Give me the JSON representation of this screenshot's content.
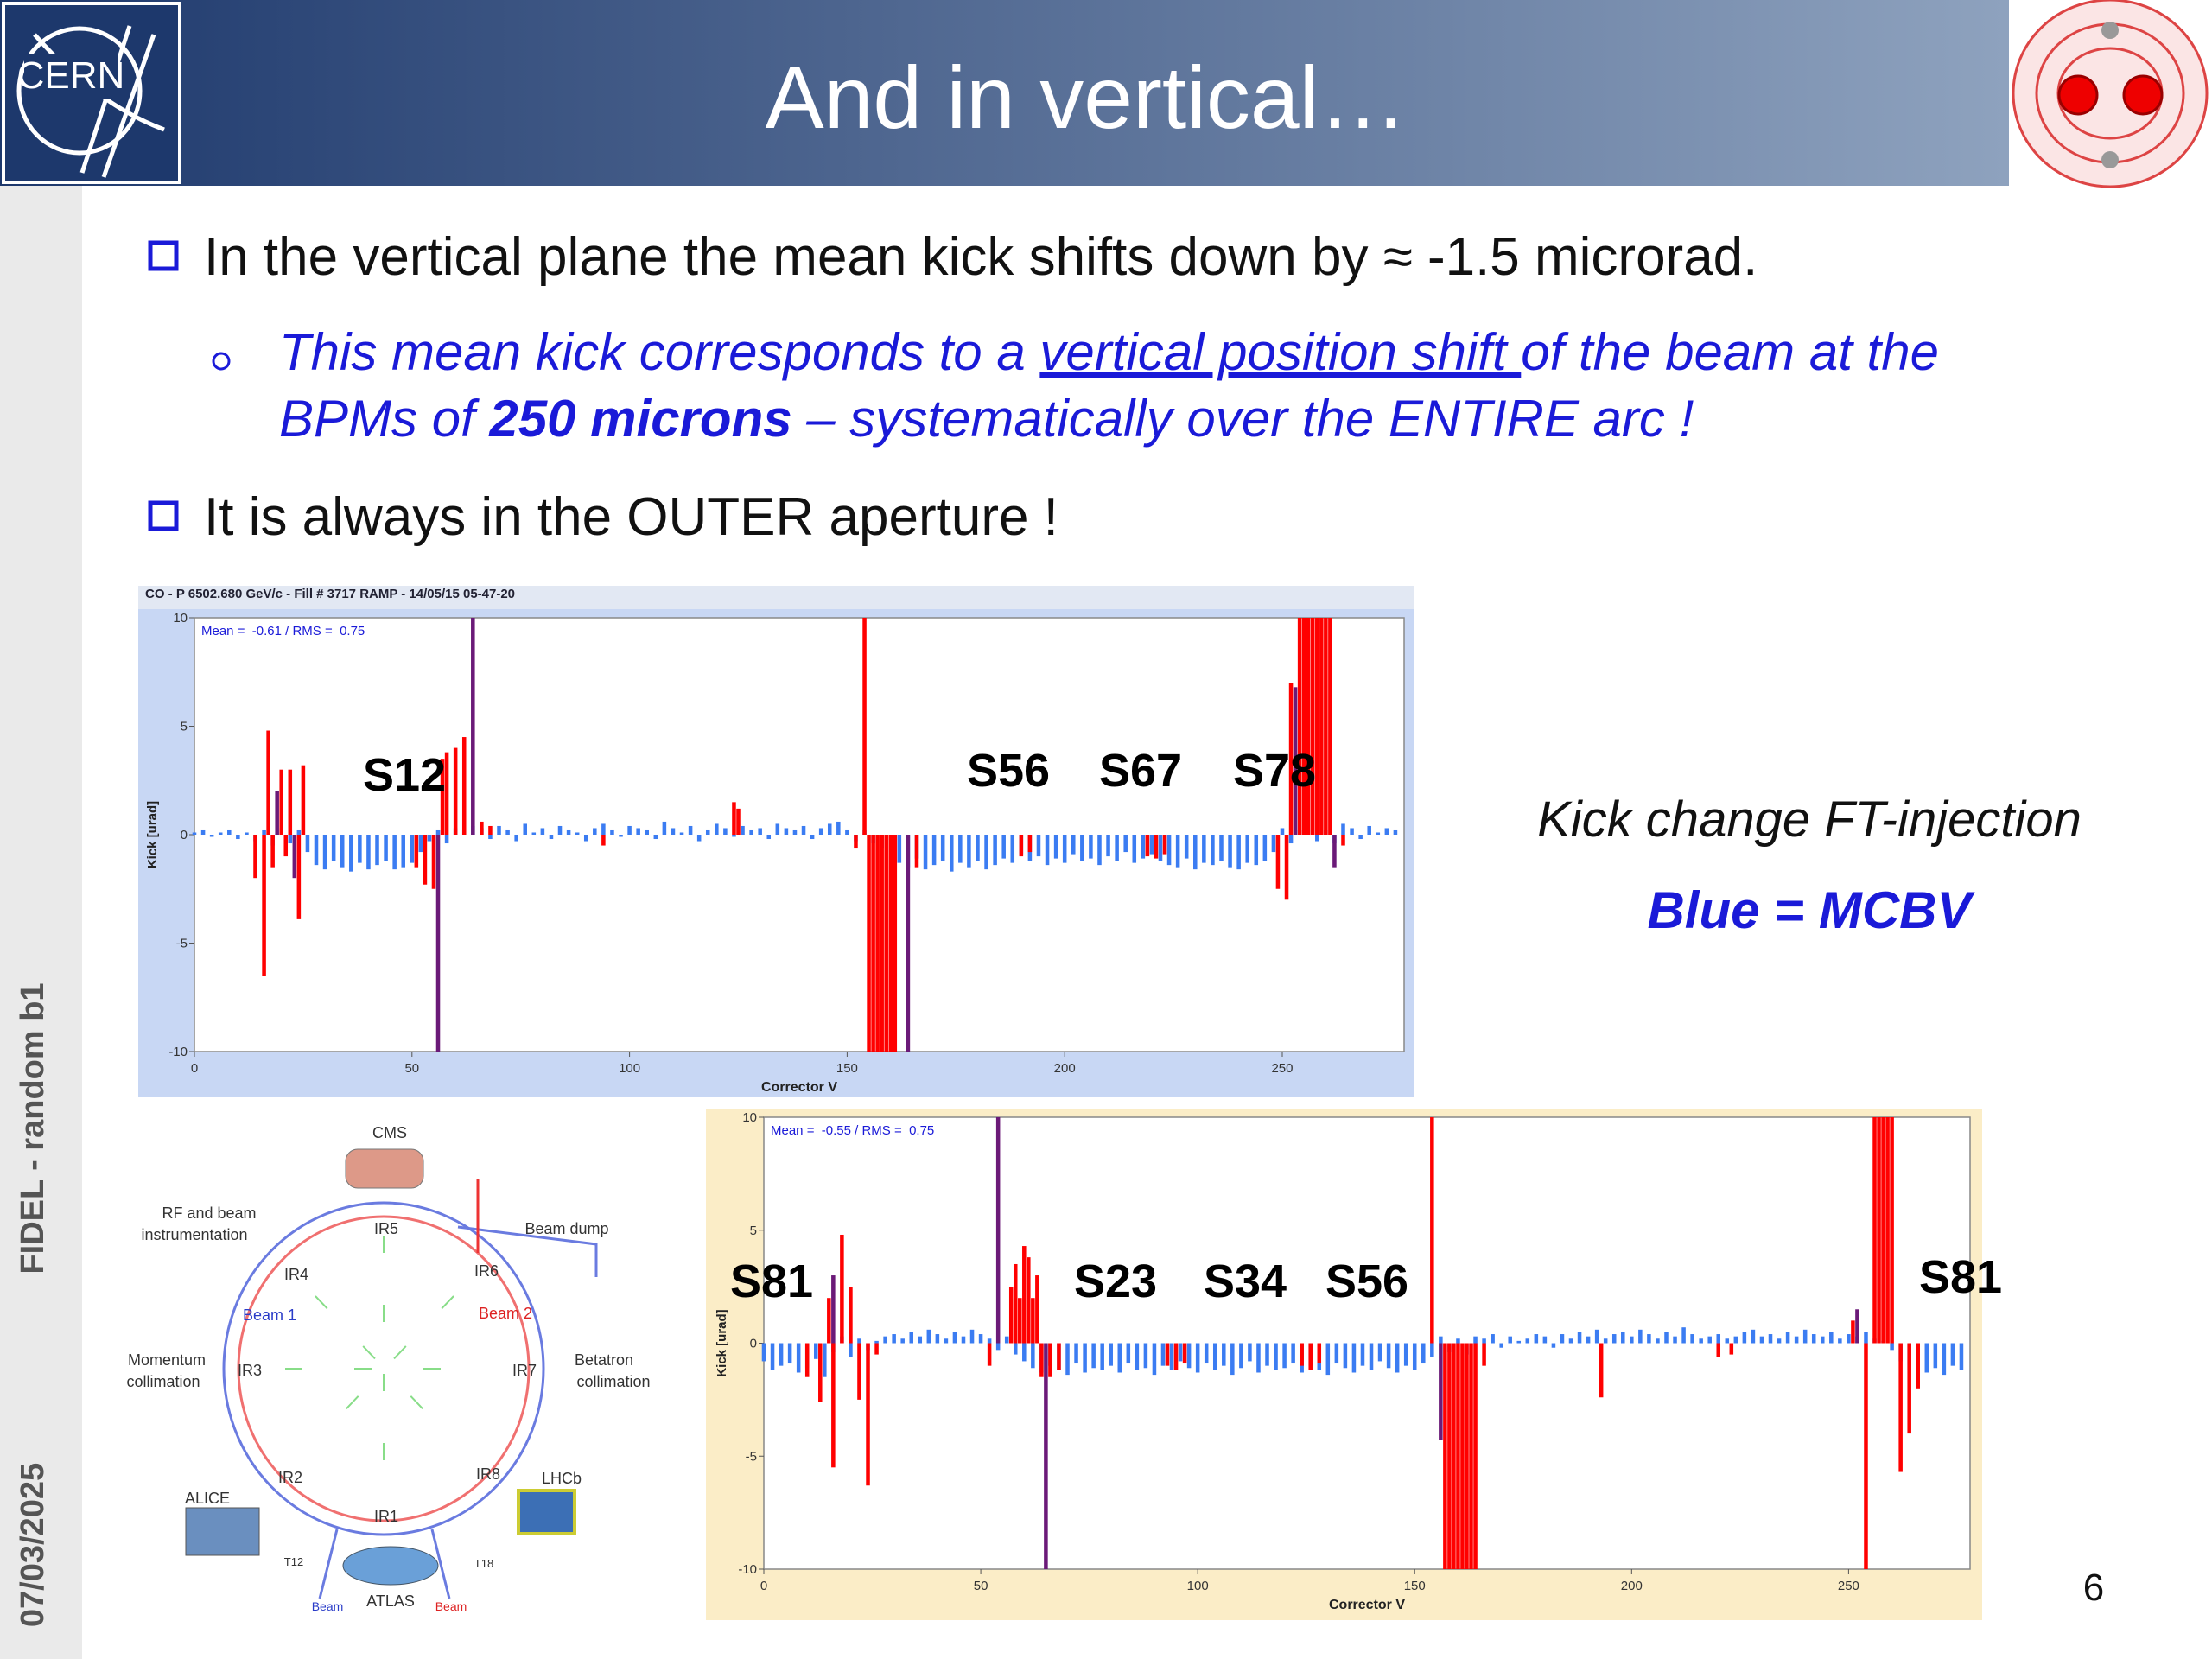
{
  "header": {
    "title": "And in vertical…"
  },
  "side": {
    "label": "FIDEL - random b1",
    "date": "07/03/2025"
  },
  "bullets": {
    "first": "In the vertical plane the mean kick shifts down by ≈ -1.5 microrad.",
    "sub": [
      "This mean kick corresponds to a ",
      "vertical position shift ",
      "of the beam at the",
      "BPMs of ",
      "250 microns",
      " – systematically over the ENTIRE arc !"
    ],
    "second": "It is always in the OUTER aperture !"
  },
  "note": {
    "caption": "Kick change FT-injection",
    "legend": "Blue = MCBV"
  },
  "page_number": "6",
  "diagram": {
    "labels": [
      "CMS",
      "RF and beam",
      "instrumentation",
      "Beam dump",
      "IR5",
      "IR4",
      "IR6",
      "Beam 1",
      "Beam 2",
      "Momentum",
      "collimation",
      "IR3",
      "IR7",
      "Betatron",
      "collimation",
      "IR2",
      "IR8",
      "ALICE",
      "LHCb",
      "IR1",
      "ATLAS",
      "T12",
      "T18",
      "Beam",
      "Beam"
    ]
  },
  "chart_data": [
    {
      "type": "bar",
      "title": "CO - P 6502.680 GeV/c - Fill # 3717 RAMP - 14/05/15 05-47-20",
      "annotation": "Mean =  -0.61 / RMS =  0.75",
      "x_label": "Corrector V",
      "y_label": "Kick [urad]",
      "sector_labels": [
        "S12",
        "S56",
        "S67",
        "S78"
      ],
      "xlim": [
        0,
        278
      ],
      "ylim": [
        -10,
        10
      ],
      "xticks": [
        0,
        50,
        100,
        150,
        200,
        250
      ],
      "yticks": [
        -10,
        -5,
        0,
        5,
        10
      ],
      "series": [
        {
          "color": "#3b7cf2",
          "x": [
            0,
            2,
            4,
            6,
            8,
            10,
            12,
            14,
            16,
            18,
            20,
            22,
            24,
            26,
            28,
            30,
            32,
            34,
            36,
            38,
            40,
            42,
            44,
            46,
            48,
            50,
            52,
            54,
            56,
            58,
            60,
            62,
            64,
            66,
            68,
            70,
            72,
            74,
            76,
            78,
            80,
            82,
            84,
            86,
            88,
            90,
            92,
            94,
            96,
            98,
            100,
            102,
            104,
            106,
            108,
            110,
            112,
            114,
            116,
            118,
            120,
            122,
            124,
            126,
            128,
            130,
            132,
            134,
            136,
            138,
            140,
            142,
            144,
            146,
            148,
            150,
            152,
            154,
            156,
            158,
            160,
            162,
            164,
            166,
            168,
            170,
            172,
            174,
            176,
            178,
            180,
            182,
            184,
            186,
            188,
            190,
            192,
            194,
            196,
            198,
            200,
            202,
            204,
            206,
            208,
            210,
            212,
            214,
            216,
            218,
            220,
            222,
            224,
            226,
            228,
            230,
            232,
            234,
            236,
            238,
            240,
            242,
            244,
            246,
            248,
            250,
            252,
            254,
            256,
            258,
            260,
            262,
            264,
            266,
            268,
            270,
            272,
            274,
            276
          ],
          "values": [
            0.1,
            0.2,
            -0.1,
            0.1,
            0.2,
            -0.2,
            0.1,
            -0.3,
            0.2,
            -0.5,
            0.3,
            -0.4,
            0.2,
            -0.8,
            -1.4,
            -1.6,
            -1.2,
            -1.5,
            -1.7,
            -1.3,
            -1.6,
            -1.4,
            -1.2,
            -1.6,
            -1.5,
            -1.3,
            -0.8,
            -0.3,
            0.2,
            -0.4,
            0.3,
            0.2,
            0.4,
            0.3,
            -0.2,
            0.4,
            0.2,
            -0.3,
            0.5,
            0.1,
            0.3,
            -0.2,
            0.4,
            0.2,
            0.1,
            -0.3,
            0.3,
            0.5,
            0.2,
            -0.1,
            0.4,
            0.3,
            0.2,
            -0.2,
            0.6,
            0.3,
            0.1,
            0.4,
            -0.3,
            0.2,
            0.5,
            0.3,
            -0.1,
            0.4,
            0.2,
            0.3,
            -0.2,
            0.5,
            0.3,
            0.2,
            0.4,
            -0.2,
            0.3,
            0.5,
            0.6,
            0.2,
            -0.3,
            0.2,
            -0.4,
            -0.6,
            -0.8,
            -1.3,
            -1.5,
            -1.1,
            -1.6,
            -1.4,
            -1.2,
            -1.7,
            -1.3,
            -1.5,
            -1.2,
            -1.6,
            -1.4,
            -1.1,
            -1.3,
            -0.9,
            -1.2,
            -1.0,
            -1.4,
            -1.1,
            -1.3,
            -0.9,
            -1.2,
            -1.1,
            -1.4,
            -1.0,
            -1.2,
            -0.8,
            -1.3,
            -1.1,
            -0.9,
            -1.2,
            -1.4,
            -1.5,
            -1.1,
            -1.6,
            -1.3,
            -1.4,
            -1.2,
            -1.5,
            -1.6,
            -1.3,
            -1.4,
            -1.2,
            -0.8,
            0.3,
            -0.4,
            0.2,
            0.3,
            -0.3,
            0.2,
            -0.4,
            0.5,
            0.3,
            -0.2,
            0.4,
            0.1,
            0.3,
            0.2
          ]
        },
        {
          "color": "#ff0000",
          "x": [
            14,
            16,
            17,
            18,
            20,
            21,
            22,
            24,
            25,
            51,
            53,
            55,
            57,
            58,
            60,
            62,
            66,
            68,
            94,
            124,
            125,
            152,
            154,
            155,
            156,
            157,
            158,
            159,
            160,
            161,
            166,
            190,
            192,
            219,
            221,
            223,
            249,
            251,
            252,
            254,
            255,
            256,
            257,
            258,
            259,
            260,
            261,
            264
          ],
          "values": [
            -2,
            -6.5,
            4.8,
            -1.5,
            3,
            -1,
            3,
            -3.9,
            3.2,
            -1.5,
            -2.3,
            -2.5,
            3.5,
            3.8,
            4,
            4.5,
            0.6,
            0.4,
            -0.5,
            1.5,
            1.2,
            -0.6,
            10,
            -10,
            -10,
            -10,
            -10,
            -10,
            -10,
            -10,
            -1.5,
            -1,
            -0.8,
            -1,
            -1.1,
            -0.9,
            -2.5,
            -3,
            7,
            10,
            10,
            10,
            10,
            10,
            10,
            10,
            10,
            -0.5
          ]
        },
        {
          "color": "#6b1a78",
          "x": [
            19,
            23,
            56,
            64,
            164,
            253,
            262
          ],
          "values": [
            2,
            -2,
            -10,
            10,
            -10,
            6.8,
            -1.5
          ]
        }
      ]
    },
    {
      "type": "bar",
      "annotation": "Mean =  -0.55 / RMS =  0.75",
      "x_label": "Corrector V",
      "y_label": "Kick [urad]",
      "sector_labels": [
        "S81",
        "S23",
        "S34",
        "S56",
        "S81"
      ],
      "xlim": [
        0,
        278
      ],
      "ylim": [
        -10,
        10
      ],
      "xticks": [
        0,
        50,
        100,
        150,
        200,
        250
      ],
      "yticks": [
        -10,
        -5,
        0,
        5,
        10
      ],
      "series": [
        {
          "color": "#3b7cf2",
          "x": [
            0,
            2,
            4,
            6,
            8,
            10,
            12,
            14,
            16,
            18,
            20,
            22,
            24,
            26,
            28,
            30,
            32,
            34,
            36,
            38,
            40,
            42,
            44,
            46,
            48,
            50,
            52,
            54,
            56,
            58,
            60,
            62,
            64,
            66,
            68,
            70,
            72,
            74,
            76,
            78,
            80,
            82,
            84,
            86,
            88,
            90,
            92,
            94,
            96,
            98,
            100,
            102,
            104,
            106,
            108,
            110,
            112,
            114,
            116,
            118,
            120,
            122,
            124,
            126,
            128,
            130,
            132,
            134,
            136,
            138,
            140,
            142,
            144,
            146,
            148,
            150,
            152,
            154,
            156,
            158,
            160,
            162,
            164,
            166,
            168,
            170,
            172,
            174,
            176,
            178,
            180,
            182,
            184,
            186,
            188,
            190,
            192,
            194,
            196,
            198,
            200,
            202,
            204,
            206,
            208,
            210,
            212,
            214,
            216,
            218,
            220,
            222,
            224,
            226,
            228,
            230,
            232,
            234,
            236,
            238,
            240,
            242,
            244,
            246,
            248,
            250,
            252,
            254,
            256,
            258,
            260,
            262,
            264,
            266,
            268,
            270,
            272,
            274,
            276
          ],
          "values": [
            -0.8,
            -1.2,
            -1.0,
            -0.9,
            -1.3,
            -1.1,
            -0.7,
            -1.5,
            -0.4,
            0.3,
            -0.6,
            0.2,
            -0.3,
            0.1,
            0.3,
            0.4,
            0.2,
            0.5,
            0.3,
            0.6,
            0.4,
            0.2,
            0.5,
            0.3,
            0.6,
            0.4,
            0.2,
            -0.3,
            0.3,
            -0.5,
            -0.8,
            -1.1,
            -1.3,
            -1.0,
            -1.2,
            -1.4,
            -0.9,
            -1.3,
            -1.1,
            -1.2,
            -1.0,
            -1.3,
            -0.9,
            -1.2,
            -1.1,
            -1.4,
            -1.0,
            -1.2,
            -0.8,
            -1.1,
            -1.3,
            -0.9,
            -1.2,
            -1.0,
            -1.4,
            -1.1,
            -0.8,
            -1.3,
            -1.0,
            -1.2,
            -1.1,
            -0.9,
            -1.3,
            -1.0,
            -1.2,
            -1.4,
            -0.9,
            -1.1,
            -1.3,
            -1.0,
            -1.2,
            -0.8,
            -1.1,
            -1.3,
            -1.0,
            -1.2,
            -0.9,
            -0.6,
            0.3,
            -0.4,
            0.2,
            -0.5,
            0.3,
            0.2,
            0.4,
            -0.2,
            0.3,
            0.1,
            0.2,
            0.4,
            0.3,
            -0.2,
            0.4,
            0.2,
            0.5,
            0.3,
            0.6,
            0.2,
            0.4,
            0.5,
            0.3,
            0.6,
            0.4,
            0.2,
            0.5,
            0.3,
            0.7,
            0.4,
            0.2,
            0.3,
            0.4,
            0.2,
            0.3,
            0.5,
            0.6,
            0.3,
            0.4,
            0.2,
            0.5,
            0.3,
            0.6,
            0.4,
            0.3,
            0.5,
            0.2,
            0.4,
            0.3,
            0.5,
            0.2,
            0.1,
            -0.3,
            -0.8,
            -1.2,
            -0.9,
            -1.3,
            -1.1,
            -1.4,
            -1.0,
            -1.2
          ]
        },
        {
          "color": "#ff0000",
          "x": [
            10,
            13,
            15,
            16,
            18,
            20,
            22,
            24,
            26,
            52,
            57,
            58,
            59,
            60,
            61,
            62,
            63,
            64,
            66,
            68,
            93,
            95,
            97,
            124,
            126,
            128,
            154,
            157,
            158,
            159,
            160,
            161,
            162,
            163,
            164,
            166,
            193,
            220,
            223,
            251,
            254,
            256,
            257,
            258,
            259,
            260,
            262,
            264,
            266
          ],
          "values": [
            -1.5,
            -2.6,
            2,
            -5.5,
            4.8,
            2.5,
            -2.5,
            -6.3,
            -0.5,
            -1,
            2.5,
            3.5,
            2,
            4.3,
            3.8,
            2,
            3,
            -1.5,
            -1.5,
            -1.2,
            -1,
            -1.2,
            -0.9,
            -1,
            -1.2,
            -0.9,
            10,
            -10,
            -10,
            -10,
            -10,
            -10,
            -10,
            -10,
            -10,
            -1,
            -2.4,
            -0.6,
            -0.5,
            1,
            -10,
            10,
            10,
            10,
            10,
            10,
            -5.7,
            -4,
            -2
          ]
        },
        {
          "color": "#6b1a78",
          "x": [
            16,
            54,
            65,
            156,
            252
          ],
          "values": [
            3,
            10,
            -10,
            -4.3,
            1.5
          ]
        }
      ]
    }
  ]
}
